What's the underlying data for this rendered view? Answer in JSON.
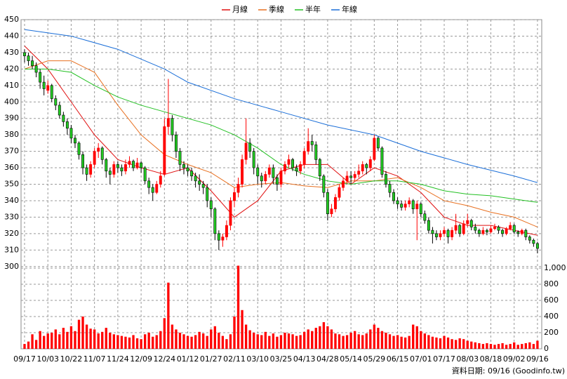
{
  "chart_data": {
    "type": "candlestick",
    "series": [
      {
        "name": "月線",
        "color": "#e01010",
        "x": [
          0,
          6,
          12,
          18,
          24,
          30,
          36,
          42,
          48,
          54,
          60,
          66,
          72,
          78,
          84,
          90,
          96,
          102,
          108,
          114,
          120,
          126,
          132
        ],
        "values": [
          434,
          420,
          400,
          380,
          365,
          360,
          356,
          360,
          346,
          330,
          340,
          358,
          362,
          362,
          350,
          360,
          355,
          345,
          330,
          325,
          325,
          322,
          319
        ]
      },
      {
        "name": "季線",
        "color": "#e87020",
        "x": [
          0,
          6,
          12,
          18,
          24,
          30,
          36,
          42,
          48,
          54,
          60,
          66,
          72,
          78,
          84,
          90,
          96,
          102,
          108,
          114,
          120,
          126,
          132
        ],
        "values": [
          420,
          425,
          425,
          418,
          398,
          380,
          368,
          362,
          357,
          348,
          350,
          351,
          349,
          348,
          352,
          352,
          354,
          348,
          340,
          337,
          333,
          330,
          324
        ]
      },
      {
        "name": "半年",
        "color": "#22c022",
        "x": [
          0,
          6,
          12,
          18,
          24,
          30,
          36,
          42,
          48,
          54,
          60,
          66,
          72,
          78,
          84,
          90,
          96,
          102,
          108,
          114,
          120,
          126,
          132
        ],
        "values": [
          420,
          420,
          418,
          410,
          403,
          398,
          394,
          390,
          386,
          380,
          372,
          362,
          356,
          352,
          350,
          352,
          352,
          350,
          346,
          344,
          343,
          341,
          339
        ]
      },
      {
        "name": "年線",
        "color": "#1a6ed8",
        "x": [
          0,
          12,
          24,
          36,
          42,
          54,
          66,
          78,
          90,
          102,
          114,
          126,
          132
        ],
        "values": [
          444,
          440,
          432,
          420,
          412,
          402,
          394,
          386,
          380,
          370,
          362,
          355,
          351
        ]
      }
    ],
    "up_color": "#ff0000",
    "down_color": "#22cc22",
    "ohlc": [
      [
        430,
        432,
        424,
        428
      ],
      [
        428,
        430,
        422,
        425
      ],
      [
        425,
        428,
        420,
        422
      ],
      [
        422,
        424,
        415,
        418
      ],
      [
        418,
        420,
        408,
        412
      ],
      [
        412,
        416,
        404,
        408
      ],
      [
        407,
        413,
        405,
        410
      ],
      [
        410,
        411,
        400,
        402
      ],
      [
        402,
        404,
        395,
        398
      ],
      [
        398,
        400,
        390,
        392
      ],
      [
        392,
        394,
        385,
        388
      ],
      [
        388,
        390,
        380,
        384
      ],
      [
        384,
        386,
        375,
        378
      ],
      [
        378,
        380,
        372,
        375
      ],
      [
        375,
        376,
        365,
        368
      ],
      [
        368,
        370,
        356,
        360
      ],
      [
        360,
        362,
        352,
        356
      ],
      [
        356,
        364,
        354,
        362
      ],
      [
        362,
        372,
        360,
        370
      ],
      [
        370,
        375,
        366,
        372
      ],
      [
        372,
        373,
        362,
        365
      ],
      [
        365,
        366,
        354,
        358
      ],
      [
        358,
        360,
        350,
        356
      ],
      [
        356,
        364,
        354,
        362
      ],
      [
        362,
        364,
        357,
        360
      ],
      [
        360,
        362,
        355,
        358
      ],
      [
        358,
        365,
        356,
        362
      ],
      [
        362,
        367,
        360,
        364
      ],
      [
        364,
        365,
        358,
        360
      ],
      [
        360,
        366,
        359,
        363
      ],
      [
        363,
        364,
        357,
        360
      ],
      [
        360,
        361,
        350,
        352
      ],
      [
        352,
        354,
        344,
        348
      ],
      [
        348,
        350,
        340,
        345
      ],
      [
        345,
        352,
        344,
        350
      ],
      [
        350,
        358,
        348,
        355
      ],
      [
        356,
        390,
        355,
        385
      ],
      [
        385,
        414,
        380,
        390
      ],
      [
        390,
        392,
        376,
        380
      ],
      [
        380,
        382,
        366,
        370
      ],
      [
        370,
        372,
        358,
        362
      ],
      [
        362,
        364,
        356,
        360
      ],
      [
        360,
        362,
        355,
        358
      ],
      [
        358,
        360,
        352,
        355
      ],
      [
        355,
        357,
        348,
        352
      ],
      [
        352,
        356,
        346,
        350
      ],
      [
        350,
        352,
        344,
        348
      ],
      [
        348,
        350,
        336,
        340
      ],
      [
        340,
        342,
        330,
        335
      ],
      [
        335,
        336,
        316,
        320
      ],
      [
        320,
        322,
        310,
        316
      ],
      [
        316,
        320,
        312,
        318
      ],
      [
        318,
        328,
        316,
        325
      ],
      [
        325,
        342,
        322,
        340
      ],
      [
        340,
        348,
        336,
        345
      ],
      [
        345,
        354,
        342,
        350
      ],
      [
        350,
        368,
        348,
        365
      ],
      [
        365,
        390,
        362,
        375
      ],
      [
        375,
        378,
        366,
        370
      ],
      [
        370,
        372,
        356,
        360
      ],
      [
        360,
        362,
        350,
        355
      ],
      [
        355,
        357,
        348,
        352
      ],
      [
        352,
        358,
        350,
        356
      ],
      [
        356,
        362,
        354,
        360
      ],
      [
        360,
        362,
        350,
        354
      ],
      [
        354,
        356,
        346,
        350
      ],
      [
        350,
        360,
        348,
        358
      ],
      [
        358,
        364,
        356,
        362
      ],
      [
        362,
        368,
        360,
        365
      ],
      [
        365,
        366,
        358,
        360
      ],
      [
        360,
        362,
        355,
        358
      ],
      [
        358,
        364,
        356,
        362
      ],
      [
        362,
        372,
        360,
        370
      ],
      [
        370,
        384,
        368,
        376
      ],
      [
        376,
        380,
        370,
        374
      ],
      [
        374,
        376,
        362,
        365
      ],
      [
        365,
        366,
        352,
        355
      ],
      [
        355,
        356,
        342,
        345
      ],
      [
        345,
        347,
        328,
        332
      ],
      [
        332,
        338,
        330,
        335
      ],
      [
        335,
        344,
        333,
        342
      ],
      [
        342,
        350,
        340,
        348
      ],
      [
        348,
        354,
        346,
        352
      ],
      [
        352,
        358,
        350,
        355
      ],
      [
        355,
        358,
        350,
        354
      ],
      [
        354,
        358,
        352,
        356
      ],
      [
        356,
        362,
        354,
        358
      ],
      [
        358,
        364,
        356,
        362
      ],
      [
        362,
        363,
        356,
        360
      ],
      [
        360,
        367,
        358,
        365
      ],
      [
        365,
        380,
        364,
        378
      ],
      [
        378,
        379,
        370,
        372
      ],
      [
        372,
        373,
        354,
        356
      ],
      [
        356,
        358,
        348,
        350
      ],
      [
        350,
        352,
        342,
        345
      ],
      [
        345,
        347,
        338,
        340
      ],
      [
        340,
        342,
        335,
        338
      ],
      [
        338,
        340,
        334,
        336
      ],
      [
        336,
        340,
        334,
        338
      ],
      [
        338,
        342,
        336,
        340
      ],
      [
        340,
        341,
        332,
        335
      ],
      [
        335,
        340,
        316,
        338
      ],
      [
        338,
        339,
        330,
        332
      ],
      [
        332,
        334,
        326,
        328
      ],
      [
        328,
        330,
        320,
        322
      ],
      [
        322,
        324,
        314,
        320
      ],
      [
        320,
        322,
        316,
        318
      ],
      [
        318,
        322,
        316,
        320
      ],
      [
        320,
        324,
        318,
        322
      ],
      [
        322,
        323,
        314,
        318
      ],
      [
        318,
        324,
        316,
        322
      ],
      [
        322,
        332,
        320,
        325
      ],
      [
        325,
        326,
        318,
        320
      ],
      [
        320,
        328,
        319,
        326
      ],
      [
        326,
        332,
        324,
        328
      ],
      [
        328,
        329,
        322,
        324
      ],
      [
        324,
        326,
        320,
        322
      ],
      [
        322,
        323,
        318,
        320
      ],
      [
        320,
        324,
        319,
        322
      ],
      [
        322,
        323,
        319,
        321
      ],
      [
        321,
        325,
        320,
        323
      ],
      [
        323,
        326,
        322,
        324
      ],
      [
        324,
        325,
        320,
        322
      ],
      [
        322,
        323,
        318,
        320
      ],
      [
        320,
        324,
        319,
        323
      ],
      [
        323,
        327,
        322,
        325
      ],
      [
        325,
        326,
        320,
        321
      ],
      [
        321,
        322,
        318,
        320
      ],
      [
        320,
        323,
        319,
        322
      ],
      [
        322,
        323,
        316,
        318
      ],
      [
        318,
        319,
        314,
        316
      ],
      [
        316,
        317,
        312,
        314
      ],
      [
        314,
        315,
        308,
        311
      ]
    ],
    "volume": {
      "color": "#ff0000",
      "axis": "y2",
      "values": [
        60,
        90,
        180,
        110,
        220,
        160,
        190,
        200,
        240,
        180,
        260,
        210,
        280,
        220,
        360,
        400,
        300,
        250,
        240,
        190,
        210,
        260,
        200,
        180,
        170,
        160,
        150,
        140,
        170,
        130,
        120,
        180,
        200,
        150,
        170,
        220,
        380,
        820,
        300,
        240,
        200,
        180,
        160,
        150,
        170,
        210,
        190,
        160,
        240,
        280,
        200,
        160,
        120,
        180,
        400,
        1030,
        480,
        300,
        230,
        200,
        180,
        170,
        210,
        160,
        190,
        150,
        170,
        200,
        190,
        180,
        160,
        170,
        210,
        240,
        220,
        260,
        280,
        330,
        280,
        240,
        190,
        180,
        160,
        170,
        200,
        220,
        180,
        170,
        190,
        240,
        300,
        260,
        220,
        200,
        180,
        160,
        170,
        150,
        140,
        160,
        300,
        280,
        220,
        190,
        170,
        150,
        140,
        130,
        160,
        140,
        120,
        110,
        130,
        120,
        100,
        90,
        80,
        70,
        60,
        70,
        60,
        50,
        60,
        70,
        50,
        60,
        80,
        50,
        60,
        70,
        80,
        60,
        100
      ]
    },
    "xlim": [
      -0.9,
      133.1
    ],
    "xticks": [
      {
        "value": 0,
        "label": "09/17"
      },
      {
        "value": 6,
        "label": "10/03"
      },
      {
        "value": 12,
        "label": "10/22"
      },
      {
        "value": 18,
        "label": "11/07"
      },
      {
        "value": 24,
        "label": "11/24"
      },
      {
        "value": 30,
        "label": "12/09"
      },
      {
        "value": 36,
        "label": "12/24"
      },
      {
        "value": 42,
        "label": "01/12"
      },
      {
        "value": 48,
        "label": "01/27"
      },
      {
        "value": 54,
        "label": "02/11"
      },
      {
        "value": 60,
        "label": "03/10"
      },
      {
        "value": 66,
        "label": "03/25"
      },
      {
        "value": 72,
        "label": "04/13"
      },
      {
        "value": 78,
        "label": "04/28"
      },
      {
        "value": 84,
        "label": "05/14"
      },
      {
        "value": 90,
        "label": "05/29"
      },
      {
        "value": 96,
        "label": "06/15"
      },
      {
        "value": 102,
        "label": "07/01"
      },
      {
        "value": 108,
        "label": "07/17"
      },
      {
        "value": 114,
        "label": "08/03"
      },
      {
        "value": 120,
        "label": "08/18"
      },
      {
        "value": 126,
        "label": "09/02"
      },
      {
        "value": 132,
        "label": "09/16"
      }
    ],
    "ylim": [
      250,
      450
    ],
    "yticks": [
      300,
      310,
      320,
      330,
      340,
      350,
      360,
      370,
      380,
      390,
      400,
      410,
      420,
      430,
      440,
      450
    ],
    "y2lim": [
      0,
      4078
    ],
    "y2ticks": [
      0,
      200,
      400,
      600,
      800,
      {
        "value": 1000,
        "label": "1,000"
      }
    ],
    "grid": true,
    "footer": "資料日期: 09/16 (Goodinfo.tw)"
  }
}
